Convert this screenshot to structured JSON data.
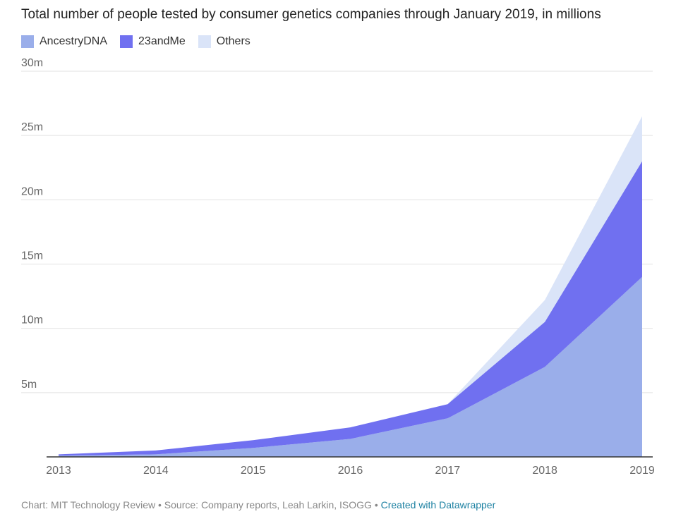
{
  "chart_data": {
    "type": "area",
    "stacked": true,
    "title": "Total number of people tested by consumer genetics companies through January 2019, in millions",
    "x": [
      "2013",
      "2014",
      "2015",
      "2016",
      "2017",
      "2018",
      "2019"
    ],
    "series": [
      {
        "name": "AncestryDNA",
        "color": "#9aaeea",
        "values": [
          0.1,
          0.2,
          0.7,
          1.4,
          3.0,
          7.0,
          14.0
        ]
      },
      {
        "name": "23andMe",
        "color": "#7070f0",
        "values": [
          0.1,
          0.3,
          0.6,
          0.9,
          1.1,
          3.5,
          9.0
        ]
      },
      {
        "name": "Others",
        "color": "#dae4f8",
        "values": [
          0.0,
          0.0,
          0.0,
          0.0,
          0.0,
          1.7,
          3.5
        ]
      }
    ],
    "ylim": [
      0,
      30
    ],
    "yticks": [
      5,
      10,
      15,
      20,
      25,
      30
    ],
    "ytick_labels": [
      "5m",
      "10m",
      "15m",
      "20m",
      "25m",
      "30m"
    ],
    "grid": true,
    "legend_position": "top-left"
  },
  "footer": {
    "text": "Chart: MIT Technology Review • Source: Company reports, Leah Larkin, ISOGG • ",
    "link": "Created with Datawrapper"
  }
}
